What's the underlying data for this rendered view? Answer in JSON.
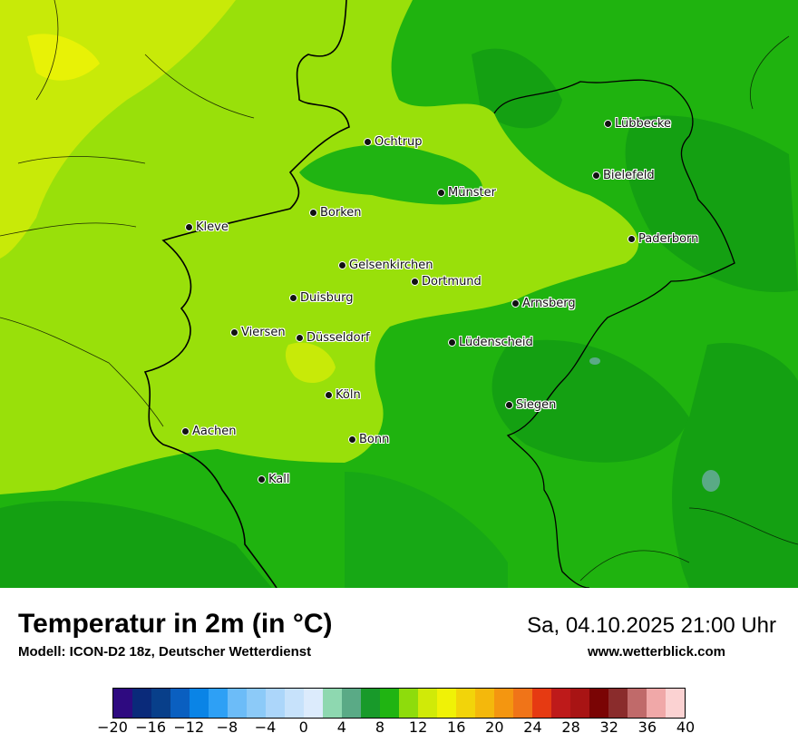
{
  "map": {
    "cities": [
      {
        "name": "Lübbecke"
      },
      {
        "name": "Ochtrup"
      },
      {
        "name": "Bielefeld"
      },
      {
        "name": "Münster"
      },
      {
        "name": "Borken"
      },
      {
        "name": "Kleve"
      },
      {
        "name": "Paderborn"
      },
      {
        "name": "Gelsenkirchen"
      },
      {
        "name": "Dortmund"
      },
      {
        "name": "Duisburg"
      },
      {
        "name": "Arnsberg"
      },
      {
        "name": "Viersen"
      },
      {
        "name": "Düsseldorf"
      },
      {
        "name": "Lüdenscheid"
      },
      {
        "name": "Köln"
      },
      {
        "name": "Siegen"
      },
      {
        "name": "Aachen"
      },
      {
        "name": "Bonn"
      },
      {
        "name": "Kall"
      }
    ]
  },
  "footer": {
    "title": "Temperatur in 2m (in °C)",
    "subtitle": "Modell: ICON-D2 18z, Deutscher Wetterdienst",
    "datetime": "Sa, 04.10.2025 21:00 Uhr",
    "website": "www.wetterblick.com"
  },
  "legend": {
    "colors": [
      "#2e0a80",
      "#0a2a7a",
      "#083f8a",
      "#0a5fc0",
      "#0a84e6",
      "#2ea0f5",
      "#6cbcf8",
      "#8ccaf8",
      "#acd6fa",
      "#c7e2fb",
      "#dcebfc",
      "#8ed8b0",
      "#5aaa86",
      "#189a2a",
      "#20b412",
      "#8edc0c",
      "#d0ea08",
      "#f0f206",
      "#f2d40a",
      "#f4b80c",
      "#f49610",
      "#f07418",
      "#e63a12",
      "#be1a1a",
      "#a81414",
      "#7a0404",
      "#8a2c2c",
      "#c06a6a",
      "#f0a8a8",
      "#fbd2d2"
    ],
    "ticks": [
      "−20",
      "−16",
      "−12",
      "−8",
      "−4",
      "0",
      "4",
      "8",
      "12",
      "16",
      "20",
      "24",
      "28",
      "32",
      "36",
      "40"
    ]
  }
}
